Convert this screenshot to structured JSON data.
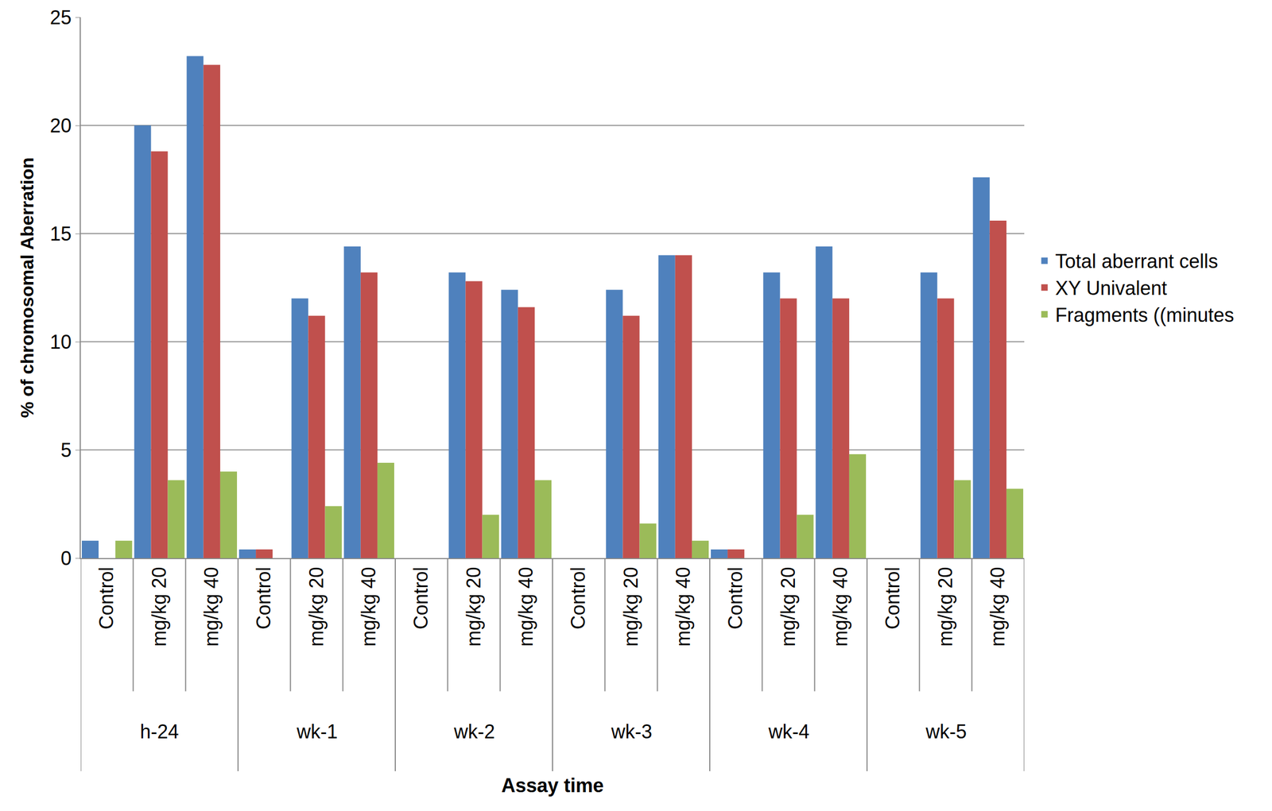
{
  "chart_data": {
    "type": "bar",
    "ylabel": "% of chromosomal Aberration",
    "xlabel": "Assay time",
    "groups": [
      "h-24",
      "wk-1",
      "wk-2",
      "wk-3",
      "wk-4",
      "wk-5"
    ],
    "categories": [
      "Control",
      "mg/kg 20",
      "mg/kg 40",
      "Control",
      "mg/kg 20",
      "mg/kg 40",
      "Control",
      "mg/kg 20",
      "mg/kg 40",
      "Control",
      "mg/kg 20",
      "mg/kg 40",
      "Control",
      "mg/kg 20",
      "mg/kg 40",
      "Control",
      "mg/kg 20",
      "mg/kg 40"
    ],
    "series": [
      {
        "name": "Total aberrant cells",
        "color": "#4f81bd",
        "values": [
          0.8,
          20,
          23.2,
          0.4,
          12,
          14.4,
          0,
          13.2,
          12.4,
          0,
          12.4,
          14,
          0.4,
          13.2,
          14.4,
          0,
          13.2,
          17.6
        ]
      },
      {
        "name": "XY Univalent",
        "color": "#c0504d",
        "values": [
          0,
          18.8,
          22.8,
          0.4,
          11.2,
          13.2,
          0,
          12.8,
          11.6,
          0,
          11.2,
          14,
          0.4,
          12,
          12,
          0,
          12,
          15.6
        ]
      },
      {
        "name": "Fragments ((minutes",
        "color": "#9bbb59",
        "values": [
          0.8,
          3.6,
          4.0,
          0,
          2.4,
          4.4,
          0,
          2.0,
          3.6,
          0,
          1.6,
          0.8,
          0,
          2.0,
          4.8,
          0,
          3.6,
          3.2
        ]
      }
    ],
    "ylim": [
      0,
      25
    ],
    "yticks": [
      0,
      5,
      10,
      15,
      20,
      25
    ],
    "grid": true,
    "legend": "right"
  }
}
